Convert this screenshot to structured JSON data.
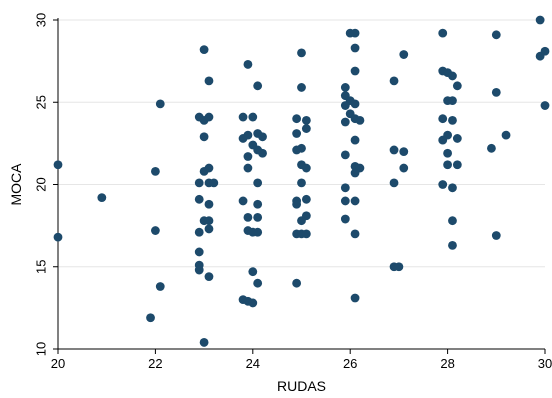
{
  "chart_data": {
    "type": "scatter",
    "xlabel": "RUDAS",
    "ylabel": "MOCA",
    "xlim": [
      20,
      30
    ],
    "ylim": [
      10,
      30
    ],
    "xticks": [
      "20",
      "22",
      "24",
      "26",
      "28",
      "30"
    ],
    "yticks": [
      "10",
      "15",
      "20",
      "25",
      "30"
    ],
    "grid": "horizontal",
    "marker_color": "#1d4a6b",
    "gridline_color": "#e6e6e6",
    "points": [
      [
        20.0,
        16.8
      ],
      [
        20.0,
        21.2
      ],
      [
        20.9,
        19.2
      ],
      [
        21.9,
        11.9
      ],
      [
        22.0,
        20.8
      ],
      [
        22.0,
        17.2
      ],
      [
        22.1,
        13.8
      ],
      [
        22.1,
        24.9
      ],
      [
        23.0,
        28.2
      ],
      [
        23.1,
        26.3
      ],
      [
        22.9,
        24.1
      ],
      [
        23.0,
        23.9
      ],
      [
        23.1,
        24.1
      ],
      [
        23.0,
        22.9
      ],
      [
        23.1,
        21.0
      ],
      [
        23.0,
        20.8
      ],
      [
        22.9,
        20.1
      ],
      [
        23.1,
        20.1
      ],
      [
        23.2,
        20.1
      ],
      [
        22.9,
        19.1
      ],
      [
        23.1,
        18.8
      ],
      [
        23.0,
        17.8
      ],
      [
        23.1,
        17.8
      ],
      [
        22.9,
        17.1
      ],
      [
        23.1,
        17.3
      ],
      [
        22.9,
        15.9
      ],
      [
        22.9,
        15.1
      ],
      [
        22.9,
        14.8
      ],
      [
        23.1,
        14.4
      ],
      [
        23.0,
        10.4
      ],
      [
        23.9,
        27.3
      ],
      [
        24.1,
        26.0
      ],
      [
        23.8,
        24.1
      ],
      [
        24.0,
        24.1
      ],
      [
        23.9,
        23.0
      ],
      [
        24.1,
        23.1
      ],
      [
        24.2,
        22.9
      ],
      [
        23.8,
        22.8
      ],
      [
        24.0,
        22.4
      ],
      [
        24.1,
        22.1
      ],
      [
        23.9,
        21.7
      ],
      [
        24.2,
        21.9
      ],
      [
        23.9,
        21.0
      ],
      [
        24.1,
        20.1
      ],
      [
        23.8,
        19.0
      ],
      [
        24.1,
        18.8
      ],
      [
        23.9,
        18.0
      ],
      [
        24.1,
        18.0
      ],
      [
        23.9,
        17.2
      ],
      [
        24.1,
        17.1
      ],
      [
        24.0,
        17.1
      ],
      [
        24.0,
        14.7
      ],
      [
        24.1,
        14.0
      ],
      [
        23.8,
        13.0
      ],
      [
        23.9,
        12.9
      ],
      [
        24.0,
        12.8
      ],
      [
        25.0,
        28.0
      ],
      [
        25.0,
        25.9
      ],
      [
        24.9,
        24.0
      ],
      [
        25.1,
        23.9
      ],
      [
        24.9,
        23.1
      ],
      [
        25.1,
        23.4
      ],
      [
        25.0,
        22.2
      ],
      [
        24.9,
        22.1
      ],
      [
        25.0,
        21.2
      ],
      [
        25.1,
        21.0
      ],
      [
        25.0,
        20.1
      ],
      [
        24.9,
        19.0
      ],
      [
        25.1,
        19.1
      ],
      [
        24.9,
        18.8
      ],
      [
        25.1,
        18.1
      ],
      [
        25.0,
        17.8
      ],
      [
        24.9,
        17.0
      ],
      [
        25.0,
        17.0
      ],
      [
        25.1,
        17.0
      ],
      [
        24.9,
        14.0
      ],
      [
        26.0,
        29.2
      ],
      [
        26.1,
        29.2
      ],
      [
        26.1,
        28.3
      ],
      [
        26.1,
        26.9
      ],
      [
        25.9,
        25.9
      ],
      [
        25.9,
        25.4
      ],
      [
        26.0,
        25.1
      ],
      [
        26.1,
        24.9
      ],
      [
        25.9,
        24.8
      ],
      [
        26.0,
        24.3
      ],
      [
        26.1,
        24.0
      ],
      [
        25.9,
        23.8
      ],
      [
        26.2,
        23.9
      ],
      [
        26.1,
        22.7
      ],
      [
        25.9,
        21.8
      ],
      [
        26.1,
        21.1
      ],
      [
        26.2,
        21.0
      ],
      [
        26.1,
        20.7
      ],
      [
        25.9,
        19.8
      ],
      [
        25.9,
        19.0
      ],
      [
        26.1,
        19.0
      ],
      [
        25.9,
        17.9
      ],
      [
        26.1,
        17.0
      ],
      [
        26.1,
        13.1
      ],
      [
        26.9,
        26.3
      ],
      [
        27.1,
        27.9
      ],
      [
        26.9,
        22.1
      ],
      [
        27.1,
        22.0
      ],
      [
        27.1,
        21.0
      ],
      [
        26.9,
        20.1
      ],
      [
        26.9,
        15.0
      ],
      [
        27.0,
        15.0
      ],
      [
        27.9,
        29.2
      ],
      [
        27.9,
        26.9
      ],
      [
        28.0,
        26.8
      ],
      [
        28.1,
        26.6
      ],
      [
        28.2,
        26.0
      ],
      [
        28.0,
        25.1
      ],
      [
        28.1,
        25.1
      ],
      [
        27.9,
        24.0
      ],
      [
        28.1,
        23.9
      ],
      [
        28.0,
        23.0
      ],
      [
        28.2,
        22.8
      ],
      [
        27.9,
        22.7
      ],
      [
        28.0,
        21.9
      ],
      [
        28.0,
        21.2
      ],
      [
        28.2,
        21.2
      ],
      [
        27.9,
        20.0
      ],
      [
        28.1,
        19.8
      ],
      [
        28.1,
        17.8
      ],
      [
        28.1,
        16.3
      ],
      [
        29.0,
        29.1
      ],
      [
        29.0,
        25.6
      ],
      [
        29.2,
        23.0
      ],
      [
        28.9,
        22.2
      ],
      [
        29.0,
        16.9
      ],
      [
        29.9,
        30.0
      ],
      [
        30.0,
        28.1
      ],
      [
        29.9,
        27.8
      ],
      [
        30.0,
        24.8
      ]
    ]
  }
}
